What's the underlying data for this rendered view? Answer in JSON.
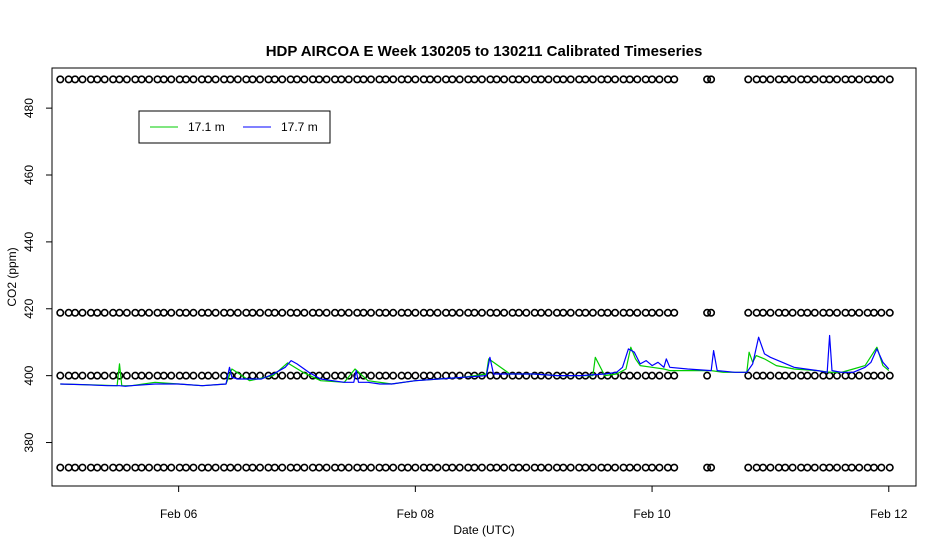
{
  "chart_data": {
    "type": "line",
    "title": "HDP AIRCOA E  Week 130205 to 130211  Calibrated Timeseries",
    "xlabel": "Date (UTC)",
    "ylabel": "CO2 (ppm)",
    "x_unit": "days since 2013-02-05 00:00 UTC",
    "xlim": [
      4.93,
      12.23
    ],
    "ylim": [
      367,
      492
    ],
    "x_ticks": [
      {
        "value": 6,
        "label": "Feb 06"
      },
      {
        "value": 8,
        "label": "Feb 08"
      },
      {
        "value": 10,
        "label": "Feb 10"
      },
      {
        "value": 12,
        "label": "Feb 12"
      }
    ],
    "y_ticks": [
      {
        "value": 380,
        "label": "380"
      },
      {
        "value": 400,
        "label": "400"
      },
      {
        "value": 420,
        "label": "420"
      },
      {
        "value": 440,
        "label": "440"
      },
      {
        "value": 460,
        "label": "460"
      },
      {
        "value": 480,
        "label": "480"
      }
    ],
    "grid": false,
    "legend": {
      "position": "top-left"
    },
    "series": [
      {
        "name": "17.1 m",
        "color": "#00cc00",
        "x": [
          5.0,
          5.3,
          5.48,
          5.5,
          5.52,
          5.6,
          5.8,
          6.0,
          6.2,
          6.4,
          6.45,
          6.6,
          6.8,
          6.92,
          7.05,
          7.2,
          7.4,
          7.49,
          7.6,
          7.8,
          8.0,
          8.2,
          8.4,
          8.6,
          8.62,
          8.8,
          9.0,
          9.2,
          9.4,
          9.5,
          9.52,
          9.6,
          9.7,
          9.78,
          9.82,
          9.86,
          9.9,
          10.0,
          10.1,
          10.15,
          10.3,
          10.5,
          10.6,
          10.8,
          10.82,
          10.85,
          10.88,
          10.95,
          11.05,
          11.2,
          11.4,
          11.5,
          11.6,
          11.7,
          11.8,
          11.9,
          11.95,
          12.0
        ],
        "y": [
          397.5,
          397.2,
          397.0,
          403.5,
          397.0,
          397.0,
          398.0,
          397.5,
          397.0,
          397.5,
          402.0,
          398.5,
          400.0,
          403.8,
          401.0,
          398.5,
          398.0,
          402.0,
          398.5,
          397.5,
          398.5,
          399.0,
          399.5,
          400.5,
          405.0,
          400.5,
          400.5,
          400.0,
          400.0,
          400.0,
          405.5,
          400.0,
          400.5,
          402.0,
          408.5,
          405.0,
          403.0,
          402.5,
          402.0,
          401.5,
          401.5,
          401.5,
          401.0,
          401.0,
          407.0,
          404.0,
          406.0,
          405.0,
          403.0,
          402.0,
          401.5,
          401.0,
          401.0,
          402.0,
          403.0,
          408.5,
          403.0,
          401.5
        ]
      },
      {
        "name": "17.7 m",
        "color": "#0000ff",
        "x": [
          5.0,
          5.2,
          5.4,
          5.5,
          5.55,
          5.6,
          5.8,
          6.0,
          6.2,
          6.4,
          6.43,
          6.45,
          6.5,
          6.6,
          6.7,
          6.8,
          6.9,
          6.95,
          7.0,
          7.1,
          7.2,
          7.3,
          7.4,
          7.48,
          7.5,
          7.52,
          7.6,
          7.7,
          7.8,
          7.9,
          8.0,
          8.2,
          8.4,
          8.6,
          8.63,
          8.66,
          8.8,
          9.0,
          9.2,
          9.4,
          9.6,
          9.7,
          9.75,
          9.8,
          9.85,
          9.9,
          9.95,
          10.0,
          10.05,
          10.1,
          10.12,
          10.15,
          10.3,
          10.5,
          10.52,
          10.55,
          10.7,
          10.8,
          10.85,
          10.9,
          10.95,
          11.0,
          11.1,
          11.2,
          11.3,
          11.4,
          11.48,
          11.5,
          11.52,
          11.6,
          11.7,
          11.8,
          11.85,
          11.9,
          11.95,
          12.0
        ],
        "y": [
          397.5,
          397.3,
          397.0,
          397.0,
          396.8,
          397.0,
          397.5,
          397.5,
          397.0,
          397.5,
          402.5,
          399.5,
          399.0,
          399.0,
          399.0,
          400.5,
          402.5,
          404.5,
          403.5,
          401.0,
          399.0,
          398.5,
          398.0,
          398.0,
          401.5,
          398.0,
          398.0,
          397.5,
          397.5,
          398.0,
          398.5,
          399.0,
          399.5,
          400.0,
          405.5,
          400.5,
          400.5,
          400.5,
          400.0,
          400.0,
          400.5,
          401.0,
          402.5,
          408.0,
          407.0,
          403.5,
          404.5,
          403.0,
          404.0,
          402.5,
          405.0,
          402.5,
          402.0,
          401.5,
          407.5,
          401.5,
          401.0,
          401.0,
          403.5,
          411.5,
          406.5,
          405.5,
          404.0,
          402.5,
          402.0,
          401.5,
          401.0,
          412.0,
          401.5,
          401.0,
          401.0,
          402.5,
          404.0,
          408.0,
          404.0,
          402.0
        ]
      }
    ],
    "calibration_markers": {
      "levels": [
        488.6,
        418.8,
        400.0,
        372.5
      ],
      "start": 5.0,
      "end": 12.0,
      "gap": [
        10.2,
        10.77
      ]
    }
  }
}
